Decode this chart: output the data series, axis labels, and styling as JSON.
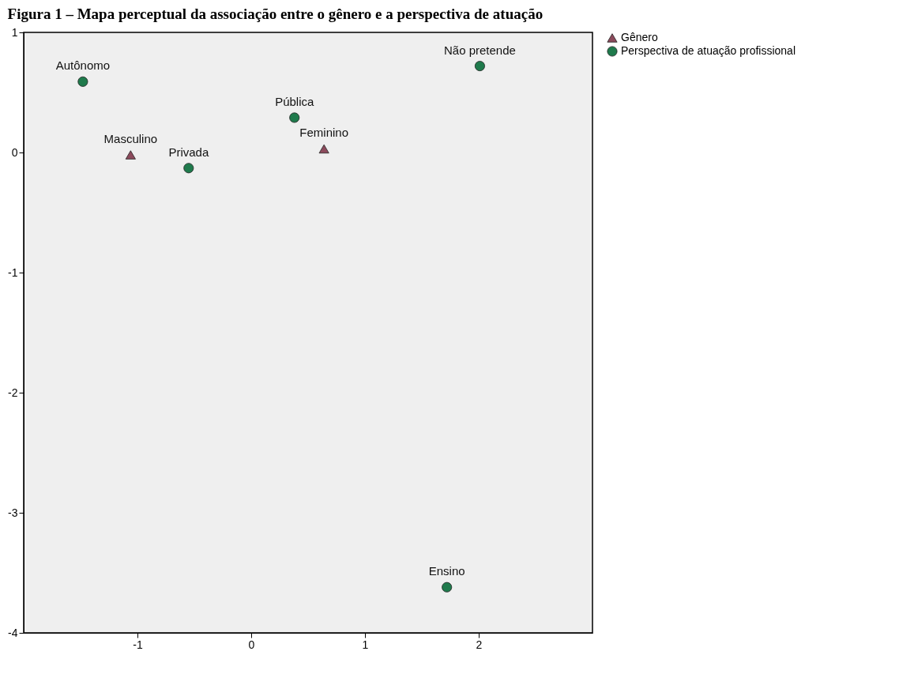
{
  "chart_data": {
    "type": "scatter",
    "title": "Figura 1 – Mapa perceptual da associação entre o gênero e a perspectiva de atuação",
    "series": [
      {
        "name": "Gênero",
        "color": "#8c4a5c",
        "marker": "triangle",
        "x": [
          -1.06,
          0.64
        ],
        "values": [
          -0.02,
          0.03
        ]
      },
      {
        "name": "Perspectiva de atuação profissional",
        "color": "#1f7a4c",
        "marker": "circle",
        "x": [
          -1.48,
          -0.55,
          0.38,
          2.01,
          1.72
        ],
        "values": [
          0.59,
          -0.13,
          0.29,
          0.72,
          -3.62
        ]
      }
    ],
    "annotations": [
      {
        "text": "Masculino",
        "x": -1.06,
        "y": -0.02
      },
      {
        "text": "Feminino",
        "x": 0.64,
        "y": 0.03
      },
      {
        "text": "Autônomo",
        "x": -1.48,
        "y": 0.59
      },
      {
        "text": "Privada",
        "x": -0.55,
        "y": -0.13
      },
      {
        "text": "Pública",
        "x": 0.38,
        "y": 0.29
      },
      {
        "text": "Não pretende",
        "x": 2.01,
        "y": 0.72
      },
      {
        "text": "Ensino",
        "x": 1.72,
        "y": -3.62
      }
    ],
    "xlim": [
      -2,
      3
    ],
    "xticks": [
      -1,
      0,
      1,
      2
    ],
    "ylim": [
      -4,
      1
    ],
    "yticks": [
      -4,
      -3,
      -2,
      -1,
      0,
      1
    ],
    "grid": false,
    "legend": "top right"
  }
}
